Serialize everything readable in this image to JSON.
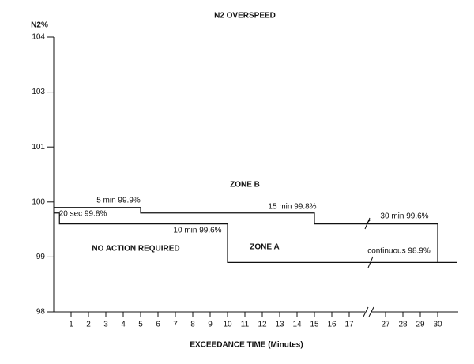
{
  "chart_data": {
    "type": "line",
    "title": "N2 OVERSPEED",
    "ylabel": "N2%",
    "xlabel": "EXCEEDANCE TIME (Minutes)",
    "ylim": [
      98,
      104
    ],
    "yticks": [
      98,
      99,
      100,
      101,
      103,
      104
    ],
    "xlim": [
      0,
      31.1
    ],
    "xticks": [
      1,
      2,
      3,
      4,
      5,
      6,
      7,
      8,
      9,
      10,
      11,
      12,
      13,
      14,
      15,
      16,
      17,
      27,
      28,
      29,
      30
    ],
    "series": [
      {
        "color": "#111111",
        "x": [
          0,
          5,
          5,
          15,
          15,
          30,
          30
        ],
        "values": [
          99.9,
          99.9,
          99.8,
          99.8,
          99.6,
          99.6,
          98.9
        ]
      },
      {
        "color": "#111111",
        "x": [
          0,
          0.33,
          0.33,
          10,
          10,
          31.1
        ],
        "values": [
          99.8,
          99.8,
          99.6,
          99.6,
          98.9,
          98.9
        ]
      }
    ],
    "annotations": [
      "5 min 99.9%",
      "20 sec 99.8%",
      "10 min 99.6%",
      "15 min 99.8%",
      "30 min 99.6%",
      "continuous 98.9%",
      "ZONE B",
      "ZONE A",
      "NO ACTION REQUIRED"
    ]
  }
}
